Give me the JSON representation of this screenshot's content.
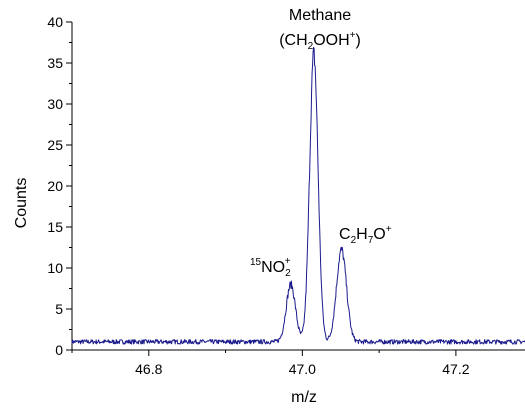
{
  "chart_data": {
    "type": "line",
    "title": "",
    "xlabel": "m/z",
    "ylabel": "Counts",
    "xlim": [
      46.7,
      47.29
    ],
    "ylim": [
      0,
      40
    ],
    "x_ticks": [
      46.8,
      47.0,
      47.2
    ],
    "x_tick_labels": [
      "46.8",
      "47.0",
      "47.2"
    ],
    "y_ticks": [
      0,
      5,
      10,
      15,
      20,
      25,
      30,
      35,
      40
    ],
    "y_tick_labels": [
      "0",
      "5",
      "10",
      "15",
      "20",
      "25",
      "30",
      "35",
      "40"
    ],
    "grid": false,
    "legend": "none",
    "line_color": "#1a1a8c",
    "baseline_counts": 1,
    "peaks": [
      {
        "x": 46.985,
        "height": 8.0,
        "width": 0.006
      },
      {
        "x": 47.015,
        "height": 36.0,
        "width": 0.0055
      },
      {
        "x": 47.051,
        "height": 12.2,
        "width": 0.0065
      }
    ],
    "annotations": {
      "methane_title": "Methane",
      "methane_formula": {
        "open": "(CH",
        "sub": "2",
        "mid": "OOH",
        "sup": "+",
        "close": ")"
      },
      "no2": {
        "pre_sup": "15",
        "main": "NO",
        "sub": "2",
        "sup": "+"
      },
      "c2h7o": {
        "c": "C",
        "c_sub": "2",
        "h": "H",
        "h_sub": "7",
        "o": "O",
        "sup": "+"
      }
    }
  }
}
